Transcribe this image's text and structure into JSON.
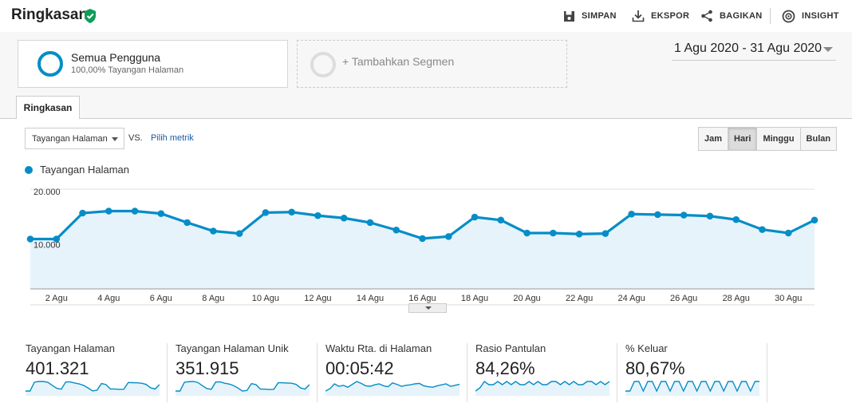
{
  "header": {
    "title": "Ringkasan",
    "actions": [
      {
        "label": "SIMPAN",
        "icon": "save-icon"
      },
      {
        "label": "EKSPOR",
        "icon": "download-icon"
      },
      {
        "label": "BAGIKAN",
        "icon": "share-icon"
      },
      {
        "label": "INSIGHT",
        "icon": "insight-icon"
      }
    ]
  },
  "segments": {
    "active": {
      "name": "Semua Pengguna",
      "sub": "100,00% Tayangan Halaman"
    },
    "add_label": "+ Tambahkan Segmen"
  },
  "date_range": "1 Agu 2020 - 31 Agu 2020",
  "tab": "Ringkasan",
  "metric_select": "Tayangan Halaman",
  "vs_label": "VS.",
  "pick_metric": "Pilih metrik",
  "intervals": [
    {
      "label": "Jam",
      "active": false
    },
    {
      "label": "Hari",
      "active": true
    },
    {
      "label": "Minggu",
      "active": false
    },
    {
      "label": "Bulan",
      "active": false
    }
  ],
  "colors": {
    "accent": "#058dc7",
    "fill": "#e6f3fa"
  },
  "chart_data": {
    "type": "area",
    "series": [
      {
        "name": "Tayangan Halaman",
        "values": [
          10000,
          10000,
          15200,
          15600,
          15600,
          15100,
          13300,
          11600,
          11100,
          15300,
          15400,
          14700,
          14200,
          13300,
          11800,
          10100,
          10500,
          14400,
          13800,
          11200,
          11200,
          11000,
          11100,
          15000,
          14900,
          14800,
          14600,
          13900,
          11900,
          11200,
          13800
        ]
      }
    ],
    "x": [
      1,
      2,
      3,
      4,
      5,
      6,
      7,
      8,
      9,
      10,
      11,
      12,
      13,
      14,
      15,
      16,
      17,
      18,
      19,
      20,
      21,
      22,
      23,
      24,
      25,
      26,
      27,
      28,
      29,
      30,
      31
    ],
    "x_tick_labels": [
      "2 Agu",
      "4 Agu",
      "6 Agu",
      "8 Agu",
      "10 Agu",
      "12 Agu",
      "14 Agu",
      "16 Agu",
      "18 Agu",
      "20 Agu",
      "22 Agu",
      "24 Agu",
      "26 Agu",
      "28 Agu",
      "30 Agu"
    ],
    "x_tick_values": [
      2,
      4,
      6,
      8,
      10,
      12,
      14,
      16,
      18,
      20,
      22,
      24,
      26,
      28,
      30
    ],
    "y_tick_labels": [
      "20.000",
      "10.000"
    ],
    "y_tick_values": [
      20000,
      10000
    ],
    "ylim": [
      0,
      20000
    ],
    "grid": true
  },
  "stats": [
    {
      "label": "Tayangan Halaman",
      "value": "401.321",
      "spark": [
        10000,
        10000,
        15200,
        15600,
        15600,
        15100,
        13300,
        11600,
        11100,
        15300,
        15400,
        14700,
        14200,
        13300,
        11800,
        10100,
        10500,
        14400,
        13800,
        11200,
        11200,
        11000,
        11100,
        15000,
        14900,
        14800,
        14600,
        13900,
        11900,
        11200,
        13800
      ]
    },
    {
      "label": "Tayangan Halaman Unik",
      "value": "351.915",
      "spark": [
        9000,
        9000,
        13500,
        13800,
        13900,
        13400,
        11800,
        10300,
        9900,
        13600,
        13700,
        13000,
        12600,
        11800,
        10500,
        9000,
        9300,
        12800,
        12300,
        10000,
        10000,
        9800,
        9900,
        13300,
        13200,
        13100,
        13000,
        12400,
        10600,
        10000,
        12300
      ]
    },
    {
      "label": "Waktu Rta. di Halaman",
      "value": "00:05:42",
      "spark": [
        330,
        335,
        345,
        340,
        342,
        338,
        344,
        350,
        346,
        341,
        340,
        343,
        345,
        341,
        339,
        347,
        344,
        340,
        342,
        343,
        345,
        346,
        341,
        339,
        338,
        341,
        343,
        345,
        340,
        342,
        344
      ]
    },
    {
      "label": "Rasio Pantulan",
      "value": "84,26%",
      "spark": [
        84,
        84.1,
        84.3,
        84.2,
        84.2,
        84.3,
        84.2,
        84.3,
        84.2,
        84.3,
        84.2,
        84.2,
        84.3,
        84.2,
        84.3,
        84.2,
        84.2,
        84.3,
        84.3,
        84.2,
        84.3,
        84.2,
        84.3,
        84.2,
        84.2,
        84.3,
        84.3,
        84.2,
        84.3,
        84.2,
        84.3
      ]
    },
    {
      "label": "% Keluar",
      "value": "80,67%",
      "spark": [
        80.6,
        80.6,
        80.7,
        80.7,
        80.6,
        80.7,
        80.7,
        80.6,
        80.7,
        80.7,
        80.6,
        80.7,
        80.7,
        80.6,
        80.7,
        80.7,
        80.6,
        80.7,
        80.7,
        80.6,
        80.7,
        80.7,
        80.6,
        80.7,
        80.7,
        80.6,
        80.7,
        80.7,
        80.6,
        80.7,
        80.7
      ]
    }
  ]
}
